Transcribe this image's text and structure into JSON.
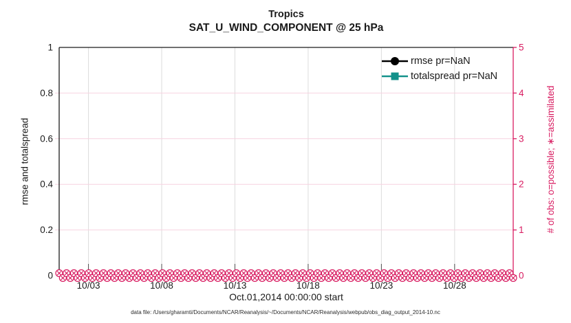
{
  "colors": {
    "accent_pink": "#D81B60",
    "grid_horizontal": "#F7D2E0",
    "grid_vertical": "#DCDCDC",
    "axis_black": "#1a1a1a",
    "series_rmse": "#000000",
    "series_totalspread": "#12918A"
  },
  "chart_data": {
    "type": "line",
    "title": "Tropics",
    "subtitle": "SAT_U_WIND_COMPONENT @ 25 hPa",
    "xlabel": "Oct.01,2014 00:00:00 start",
    "ylabel_left": "rmse and totalspread",
    "ylabel_right": "# of obs: o=possible; ∗=assimilated",
    "caption": "data file: /Users/gharamti/Documents/NCAR/Reanalysis/~/Documents/NCAR/Reanalysis/webpub/obs_diag_output_2014-10.nc",
    "x_axis": {
      "range_days": [
        0,
        31
      ],
      "tick_days": [
        2,
        7,
        12,
        17,
        22,
        27
      ],
      "tick_labels": [
        "10/03",
        "10/08",
        "10/13",
        "10/18",
        "10/23",
        "10/28"
      ]
    },
    "y_axis_left": {
      "range": [
        0,
        1
      ],
      "ticks": [
        0,
        0.2,
        0.4,
        0.6,
        0.8,
        1
      ],
      "tick_labels": [
        "0",
        "0.2",
        "0.4",
        "0.6",
        "0.8",
        "1"
      ],
      "color": "#1a1a1a"
    },
    "y_axis_right": {
      "range": [
        0,
        5
      ],
      "ticks": [
        0,
        1,
        2,
        3,
        4,
        5
      ],
      "tick_labels": [
        "0",
        "1",
        "2",
        "3",
        "4",
        "5"
      ],
      "color": "#D81B60"
    },
    "series": [
      {
        "name": "rmse pr=NaN",
        "color": "#000000",
        "marker": "circle",
        "values": null
      },
      {
        "name": "totalspread pr=NaN",
        "color": "#12918A",
        "marker": "square",
        "values": null
      }
    ],
    "obs_markers": {
      "color": "#D81B60",
      "value": 0,
      "count": 124,
      "possible_symbol": "o",
      "assimilated_symbol": "×"
    },
    "grid": {
      "on": true,
      "horizontal_color": "#F7D2E0",
      "vertical_color": "#DCDCDC"
    },
    "legend_position": "top-right"
  }
}
